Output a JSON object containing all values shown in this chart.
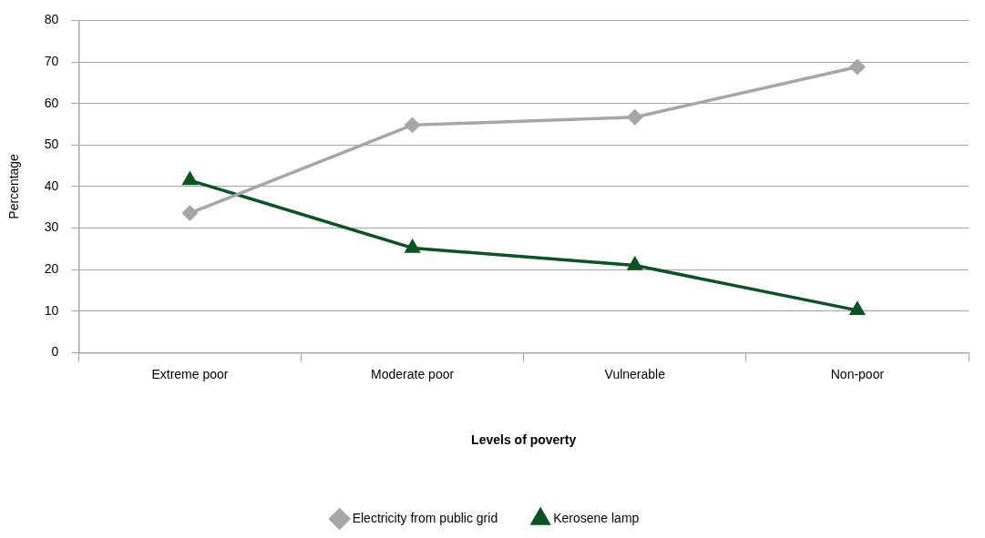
{
  "chart_data": {
    "type": "line",
    "xlabel": "Levels of poverty",
    "ylabel": "Percentage",
    "categories": [
      "Extreme poor",
      "Moderate poor",
      "Vulnerable",
      "Non-poor"
    ],
    "series": [
      {
        "name": "Electricity from public grid",
        "color": "#a6a6a6",
        "marker": "diamond",
        "values": [
          33.6,
          54.8,
          56.7,
          68.8
        ]
      },
      {
        "name": "Kerosene lamp",
        "color": "#0b5323",
        "marker": "triangle",
        "values": [
          41.5,
          25.2,
          21,
          10.2
        ]
      }
    ],
    "ylim": [
      0,
      80
    ],
    "yticks": [
      0,
      10,
      20,
      30,
      40,
      50,
      60,
      70,
      80
    ],
    "grid": "y",
    "legend": "bottom",
    "line_style": "solid"
  }
}
